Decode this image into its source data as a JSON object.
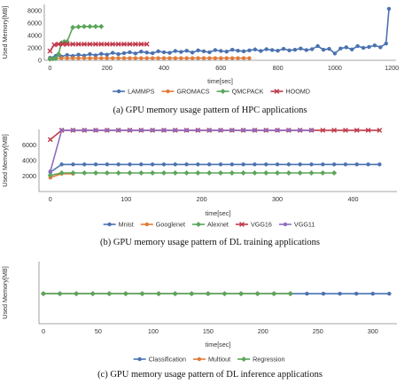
{
  "chart_data": [
    {
      "type": "line",
      "caption": "(a) GPU memory usage pattern of HPC applications",
      "xlabel": "time[sec]",
      "ylabel": "Used Memory[MB]",
      "xlim": [
        -20,
        1215
      ],
      "ylim": [
        0,
        9000
      ],
      "xticks": [
        0,
        200,
        400,
        600,
        800,
        1000,
        1200
      ],
      "yticks": [
        0,
        2000,
        4000,
        6000,
        8000
      ],
      "grid": false,
      "legend": "bottom",
      "series": [
        {
          "name": "LAMMPS",
          "color": "#4a72b0",
          "marker": "circle",
          "x": [
            0,
            20,
            40,
            60,
            80,
            100,
            120,
            140,
            160,
            180,
            200,
            220,
            240,
            260,
            280,
            300,
            320,
            340,
            360,
            380,
            400,
            420,
            440,
            460,
            480,
            500,
            520,
            540,
            560,
            580,
            600,
            620,
            640,
            660,
            680,
            700,
            720,
            740,
            760,
            780,
            800,
            820,
            840,
            860,
            880,
            900,
            920,
            940,
            960,
            980,
            1000,
            1020,
            1040,
            1060,
            1080,
            1100,
            1120,
            1140,
            1160,
            1180,
            1190
          ],
          "y": [
            400,
            700,
            600,
            850,
            700,
            900,
            750,
            1000,
            800,
            1050,
            900,
            1200,
            1000,
            1150,
            1300,
            1100,
            1400,
            1250,
            1150,
            1450,
            1300,
            1200,
            1500,
            1350,
            1550,
            1250,
            1600,
            1450,
            1300,
            1650,
            1500,
            1400,
            1700,
            1550,
            1450,
            1600,
            1750,
            1500,
            1800,
            1650,
            1550,
            1850,
            1600,
            1700,
            1900,
            1650,
            1800,
            2300,
            1700,
            1850,
            1100,
            1900,
            2100,
            1750,
            2300,
            2000,
            2150,
            2400,
            2100,
            2700,
            8300
          ]
        },
        {
          "name": "GROMACS",
          "color": "#e07b39",
          "marker": "circle",
          "x": [
            0,
            20,
            40,
            60,
            80,
            100,
            120,
            140,
            160,
            180,
            200,
            220,
            240,
            260,
            280,
            300,
            320,
            340,
            360,
            380,
            400,
            420,
            440,
            460,
            480,
            500,
            520,
            540,
            560,
            580,
            600,
            620,
            640,
            660,
            680,
            700
          ],
          "y": [
            250,
            300,
            350,
            350,
            350,
            350,
            350,
            350,
            350,
            350,
            350,
            350,
            350,
            350,
            350,
            350,
            350,
            350,
            350,
            350,
            350,
            350,
            350,
            350,
            350,
            350,
            350,
            350,
            350,
            350,
            350,
            350,
            350,
            350,
            350,
            350
          ]
        },
        {
          "name": "QMCPACK",
          "color": "#5aa55a",
          "marker": "diamond",
          "x": [
            0,
            10,
            20,
            30,
            40,
            50,
            60,
            80,
            100,
            120,
            140,
            160,
            180
          ],
          "y": [
            200,
            250,
            300,
            1000,
            2800,
            3000,
            3000,
            5300,
            5400,
            5450,
            5450,
            5450,
            5450
          ]
        },
        {
          "name": "HOOMD",
          "color": "#c0394b",
          "marker": "x",
          "x": [
            0,
            15,
            30,
            45,
            60,
            80,
            100,
            120,
            140,
            160,
            180,
            200,
            220,
            240,
            260,
            280,
            300,
            320,
            340
          ],
          "y": [
            1500,
            2500,
            2600,
            2600,
            2600,
            2600,
            2600,
            2600,
            2600,
            2600,
            2600,
            2600,
            2600,
            2600,
            2600,
            2600,
            2600,
            2600,
            2600
          ]
        }
      ]
    },
    {
      "type": "line",
      "caption": "(b) GPU memory usage pattern of DL training applications",
      "xlabel": "time[sec]",
      "ylabel": "Used Memory[MB]",
      "xlim": [
        -15,
        458
      ],
      "ylim": [
        0,
        8000
      ],
      "xticks": [
        0,
        100,
        200,
        300,
        400
      ],
      "yticks": [
        2000,
        4000,
        6000
      ],
      "grid": false,
      "legend": "bottom",
      "series": [
        {
          "name": "Mnist",
          "color": "#4a72b0",
          "marker": "circle",
          "x": [
            0,
            15,
            30,
            45,
            60,
            75,
            90,
            105,
            120,
            135,
            150,
            165,
            180,
            195,
            210,
            225,
            240,
            255,
            270,
            285,
            300,
            315,
            330,
            345,
            360,
            375,
            390,
            405,
            420,
            435
          ],
          "y": [
            2500,
            3500,
            3500,
            3500,
            3500,
            3500,
            3500,
            3500,
            3500,
            3500,
            3500,
            3500,
            3500,
            3500,
            3500,
            3500,
            3500,
            3500,
            3500,
            3500,
            3500,
            3500,
            3500,
            3500,
            3500,
            3500,
            3500,
            3500,
            3500,
            3500
          ]
        },
        {
          "name": "Googlenet",
          "color": "#e07b39",
          "marker": "circle",
          "x": [
            0,
            15,
            30
          ],
          "y": [
            1800,
            2300,
            2300
          ]
        },
        {
          "name": "Alexnet",
          "color": "#5aa55a",
          "marker": "diamond",
          "x": [
            0,
            15,
            30,
            45,
            60,
            75,
            90,
            105,
            120,
            135,
            150,
            165,
            180,
            195,
            210,
            225,
            240,
            255,
            270,
            285,
            300,
            315,
            330,
            345,
            360,
            375
          ],
          "y": [
            2100,
            2400,
            2400,
            2400,
            2400,
            2400,
            2400,
            2400,
            2400,
            2400,
            2400,
            2400,
            2400,
            2400,
            2400,
            2400,
            2400,
            2400,
            2400,
            2400,
            2400,
            2400,
            2400,
            2400,
            2400,
            2400
          ]
        },
        {
          "name": "VGG16",
          "color": "#c0394b",
          "marker": "x",
          "x": [
            0,
            15,
            30,
            45,
            60,
            75,
            90,
            105,
            120,
            135,
            150,
            165,
            180,
            195,
            210,
            225,
            240,
            255,
            270,
            285,
            300,
            315,
            330,
            345,
            360,
            375,
            390,
            405,
            420,
            435
          ],
          "y": [
            6700,
            7900,
            7900,
            7900,
            7900,
            7900,
            7900,
            7900,
            7900,
            7900,
            7900,
            7900,
            7900,
            7900,
            7900,
            7900,
            7900,
            7900,
            7900,
            7900,
            7900,
            7900,
            7900,
            7900,
            7900,
            7900,
            7900,
            7900,
            7900,
            7900
          ]
        },
        {
          "name": "VGG11",
          "color": "#8f6cbf",
          "marker": "circle",
          "x": [
            0,
            15,
            30,
            45,
            60,
            75,
            90,
            105,
            120,
            135,
            150,
            165,
            180,
            195,
            210,
            225,
            240,
            255,
            270,
            285,
            300,
            315,
            330,
            345
          ],
          "y": [
            2600,
            7900,
            7900,
            7900,
            7900,
            7900,
            7900,
            7900,
            7900,
            7900,
            7900,
            7900,
            7900,
            7900,
            7900,
            7900,
            7900,
            7900,
            7900,
            7900,
            7900,
            7900,
            7900,
            7900
          ]
        }
      ]
    },
    {
      "type": "line",
      "caption": "(c) GPU memory usage pattern of DL inference applications",
      "xlabel": "time[sec]",
      "ylabel": "Used Memory[MB]",
      "xlim": [
        -4,
        322
      ],
      "ylim": [
        0,
        600
      ],
      "xticks": [
        0,
        50,
        100,
        150,
        200,
        250,
        300
      ],
      "yticks": [],
      "grid": false,
      "legend": "bottom",
      "series": [
        {
          "name": "Classification",
          "color": "#4a72b0",
          "marker": "circle",
          "x": [
            0,
            15,
            30,
            45,
            60,
            75,
            90,
            105,
            120,
            135,
            150,
            165,
            180,
            195,
            210,
            225,
            240,
            255,
            270,
            285,
            300,
            315
          ],
          "y": [
            290,
            290,
            290,
            290,
            290,
            290,
            290,
            290,
            290,
            290,
            290,
            290,
            290,
            290,
            290,
            290,
            290,
            290,
            290,
            290,
            290,
            290
          ]
        },
        {
          "name": "Multiout",
          "color": "#e07b39",
          "marker": "circle",
          "x": [
            0,
            15,
            30,
            45,
            60,
            75,
            90,
            105,
            120,
            135,
            150,
            165,
            180,
            195,
            210,
            225
          ],
          "y": [
            290,
            290,
            290,
            290,
            290,
            290,
            290,
            290,
            290,
            290,
            290,
            290,
            290,
            290,
            290,
            290
          ]
        },
        {
          "name": "Regression",
          "color": "#5aa55a",
          "marker": "diamond",
          "x": [
            0,
            15,
            30,
            45,
            60,
            75,
            90,
            105,
            120,
            135,
            150,
            165,
            180,
            195,
            210,
            225
          ],
          "y": [
            290,
            290,
            290,
            290,
            290,
            290,
            290,
            290,
            290,
            290,
            290,
            290,
            290,
            290,
            290,
            290
          ]
        }
      ]
    }
  ]
}
